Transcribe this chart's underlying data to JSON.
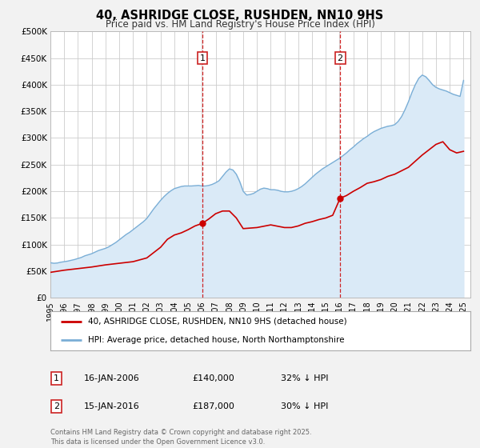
{
  "title": "40, ASHRIDGE CLOSE, RUSHDEN, NN10 9HS",
  "subtitle": "Price paid vs. HM Land Registry's House Price Index (HPI)",
  "bg_color": "#f2f2f2",
  "plot_bg_color": "#ffffff",
  "grid_color": "#cccccc",
  "hpi_color": "#7aaed6",
  "hpi_fill_color": "#daeaf7",
  "price_color": "#cc0000",
  "marker_box_color": "#cc2222",
  "xmin": 1995.0,
  "xmax": 2025.5,
  "ymin": 0,
  "ymax": 500000,
  "yticks": [
    0,
    50000,
    100000,
    150000,
    200000,
    250000,
    300000,
    350000,
    400000,
    450000,
    500000
  ],
  "ytick_labels": [
    "£0",
    "£50K",
    "£100K",
    "£150K",
    "£200K",
    "£250K",
    "£300K",
    "£350K",
    "£400K",
    "£450K",
    "£500K"
  ],
  "xtick_years": [
    1995,
    1996,
    1997,
    1998,
    1999,
    2000,
    2001,
    2002,
    2003,
    2004,
    2005,
    2006,
    2007,
    2008,
    2009,
    2010,
    2011,
    2012,
    2013,
    2014,
    2015,
    2016,
    2017,
    2018,
    2019,
    2020,
    2021,
    2022,
    2023,
    2024,
    2025
  ],
  "hpi_x": [
    1995.0,
    1995.25,
    1995.5,
    1995.75,
    1996.0,
    1996.25,
    1996.5,
    1996.75,
    1997.0,
    1997.25,
    1997.5,
    1997.75,
    1998.0,
    1998.25,
    1998.5,
    1998.75,
    1999.0,
    1999.25,
    1999.5,
    1999.75,
    2000.0,
    2000.25,
    2000.5,
    2000.75,
    2001.0,
    2001.25,
    2001.5,
    2001.75,
    2002.0,
    2002.25,
    2002.5,
    2002.75,
    2003.0,
    2003.25,
    2003.5,
    2003.75,
    2004.0,
    2004.25,
    2004.5,
    2004.75,
    2005.0,
    2005.25,
    2005.5,
    2005.75,
    2006.0,
    2006.25,
    2006.5,
    2006.75,
    2007.0,
    2007.25,
    2007.5,
    2007.75,
    2008.0,
    2008.25,
    2008.5,
    2008.75,
    2009.0,
    2009.25,
    2009.5,
    2009.75,
    2010.0,
    2010.25,
    2010.5,
    2010.75,
    2011.0,
    2011.25,
    2011.5,
    2011.75,
    2012.0,
    2012.25,
    2012.5,
    2012.75,
    2013.0,
    2013.25,
    2013.5,
    2013.75,
    2014.0,
    2014.25,
    2014.5,
    2014.75,
    2015.0,
    2015.25,
    2015.5,
    2015.75,
    2016.0,
    2016.25,
    2016.5,
    2016.75,
    2017.0,
    2017.25,
    2017.5,
    2017.75,
    2018.0,
    2018.25,
    2018.5,
    2018.75,
    2019.0,
    2019.25,
    2019.5,
    2019.75,
    2020.0,
    2020.25,
    2020.5,
    2020.75,
    2021.0,
    2021.25,
    2021.5,
    2021.75,
    2022.0,
    2022.25,
    2022.5,
    2022.75,
    2023.0,
    2023.25,
    2023.5,
    2023.75,
    2024.0,
    2024.25,
    2024.5,
    2024.75,
    2025.0
  ],
  "hpi_y": [
    66000,
    65000,
    65500,
    67000,
    68000,
    69000,
    70500,
    72000,
    74000,
    76000,
    79000,
    81000,
    83000,
    86000,
    89000,
    91000,
    93000,
    96000,
    100000,
    104000,
    109000,
    114000,
    119000,
    123000,
    128000,
    133000,
    138000,
    143000,
    149000,
    158000,
    167000,
    175000,
    183000,
    190000,
    196000,
    201000,
    205000,
    207000,
    209000,
    210000,
    210000,
    210000,
    210500,
    211000,
    210000,
    210000,
    211000,
    213000,
    216000,
    220000,
    228000,
    236000,
    242000,
    240000,
    232000,
    218000,
    200000,
    193000,
    194000,
    196000,
    200000,
    204000,
    206000,
    205000,
    203000,
    203000,
    202000,
    200000,
    199000,
    199000,
    200000,
    202000,
    205000,
    209000,
    214000,
    220000,
    226000,
    232000,
    237000,
    242000,
    246000,
    250000,
    254000,
    258000,
    262000,
    267000,
    272000,
    278000,
    283000,
    289000,
    294000,
    299000,
    303000,
    308000,
    312000,
    315000,
    318000,
    320000,
    322000,
    323000,
    325000,
    331000,
    340000,
    353000,
    368000,
    385000,
    400000,
    412000,
    418000,
    415000,
    408000,
    400000,
    395000,
    392000,
    390000,
    388000,
    385000,
    382000,
    380000,
    378000,
    408000
  ],
  "price_x": [
    1995.0,
    1995.5,
    1996.0,
    1997.0,
    1998.0,
    1998.5,
    1999.0,
    2000.0,
    2001.0,
    2002.0,
    2003.0,
    2003.5,
    2004.0,
    2004.5,
    2005.0,
    2005.5,
    2006.04,
    2006.5,
    2007.0,
    2007.5,
    2008.0,
    2008.5,
    2009.0,
    2010.0,
    2011.0,
    2012.0,
    2012.5,
    2013.0,
    2013.5,
    2014.0,
    2014.5,
    2015.0,
    2015.5,
    2016.04,
    2016.5,
    2017.0,
    2017.5,
    2018.0,
    2018.5,
    2019.0,
    2019.5,
    2020.0,
    2021.0,
    2022.0,
    2022.5,
    2023.0,
    2023.5,
    2024.0,
    2024.5,
    2025.0
  ],
  "price_y": [
    48000,
    50000,
    52000,
    55000,
    58000,
    60000,
    62000,
    65000,
    68000,
    75000,
    95000,
    110000,
    118000,
    122000,
    128000,
    135000,
    140000,
    148000,
    158000,
    163000,
    163000,
    150000,
    130000,
    132000,
    137000,
    132000,
    132000,
    135000,
    140000,
    143000,
    147000,
    150000,
    155000,
    187000,
    192000,
    200000,
    207000,
    215000,
    218000,
    222000,
    228000,
    232000,
    245000,
    268000,
    278000,
    288000,
    293000,
    278000,
    272000,
    275000
  ],
  "marker1_x": 2006.04,
  "marker1_y": 140000,
  "marker2_x": 2016.04,
  "marker2_y": 187000,
  "marker1_label": "1",
  "marker2_label": "2",
  "marker1_date": "16-JAN-2006",
  "marker1_price": "£140,000",
  "marker1_hpi": "32% ↓ HPI",
  "marker2_date": "15-JAN-2016",
  "marker2_price": "£187,000",
  "marker2_hpi": "30% ↓ HPI",
  "legend_line1": "40, ASHRIDGE CLOSE, RUSHDEN, NN10 9HS (detached house)",
  "legend_line2": "HPI: Average price, detached house, North Northamptonshire",
  "footer": "Contains HM Land Registry data © Crown copyright and database right 2025.\nThis data is licensed under the Open Government Licence v3.0."
}
